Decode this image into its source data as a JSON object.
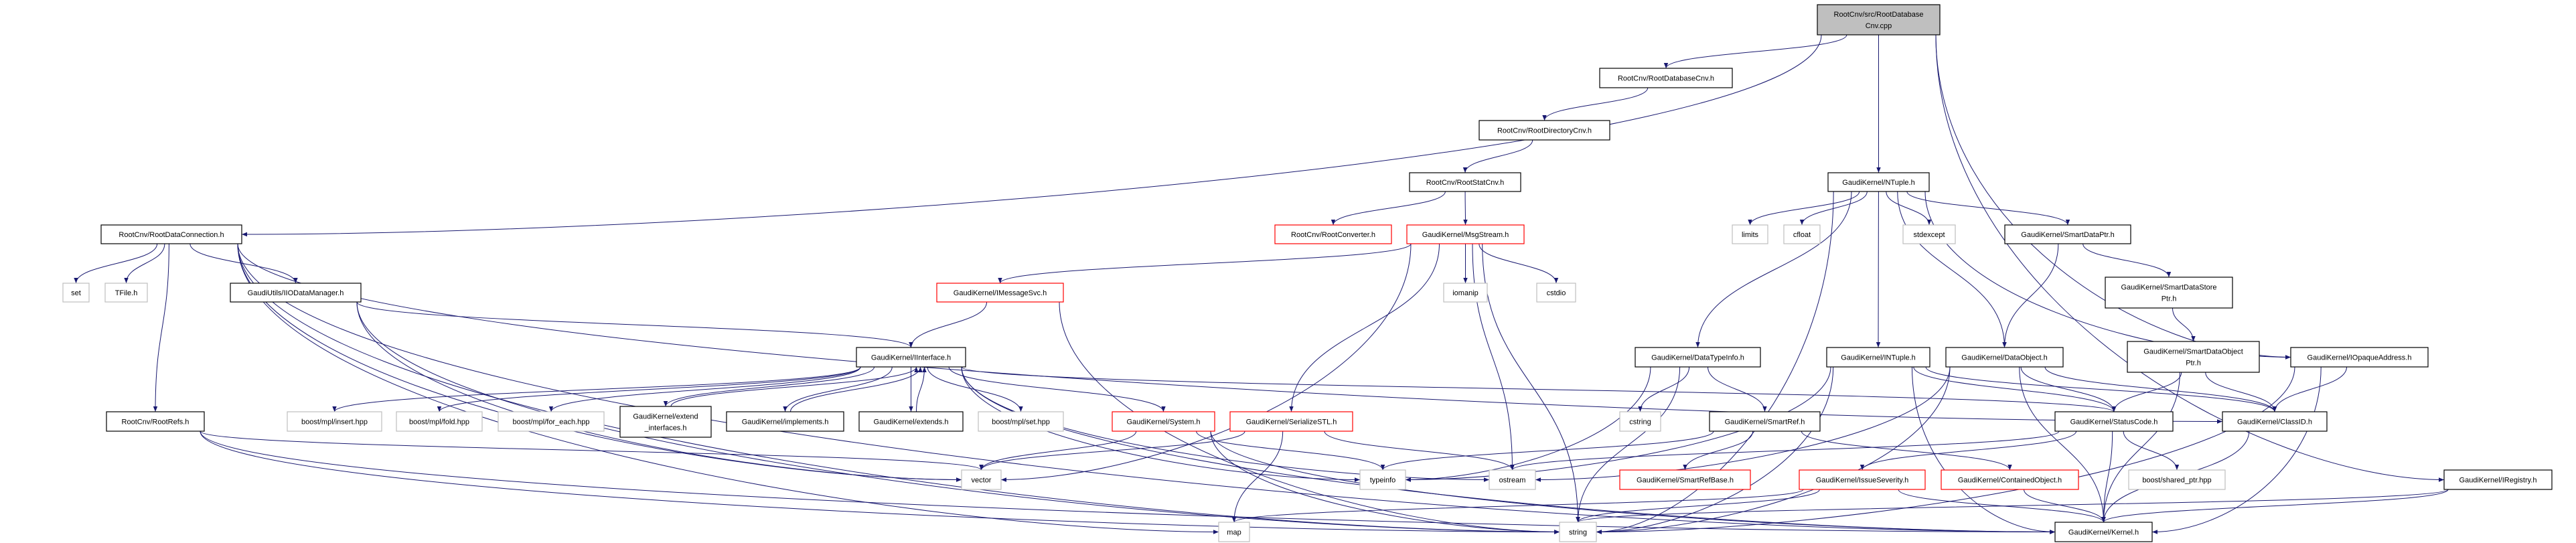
{
  "colors": {
    "edge": "#191970",
    "documented_border": "#000000",
    "truncated_border": "#ff0000",
    "external_border": "#bfbfbf",
    "root_fill": "#bfbfbf"
  },
  "nodes": [
    {
      "id": "root",
      "lines": [
        "RootCnv/src/RootDatabase",
        "Cnv.cpp"
      ],
      "style": "root"
    },
    {
      "id": "rdbcnv",
      "lines": [
        "RootCnv/RootDatabaseCnv.h"
      ],
      "style": "doc"
    },
    {
      "id": "rdircnv",
      "lines": [
        "RootCnv/RootDirectoryCnv.h"
      ],
      "style": "doc"
    },
    {
      "id": "rstatcnv",
      "lines": [
        "RootCnv/RootStatCnv.h"
      ],
      "style": "doc"
    },
    {
      "id": "rconv",
      "lines": [
        "RootCnv/RootConverter.h"
      ],
      "style": "red"
    },
    {
      "id": "msgstream",
      "lines": [
        "GaudiKernel/MsgStream.h"
      ],
      "style": "red"
    },
    {
      "id": "rdataconn",
      "lines": [
        "RootCnv/RootDataConnection.h"
      ],
      "style": "doc"
    },
    {
      "id": "set",
      "lines": [
        "set"
      ],
      "style": "ext"
    },
    {
      "id": "tfile",
      "lines": [
        "TFile.h"
      ],
      "style": "ext"
    },
    {
      "id": "iiodm",
      "lines": [
        "GaudiUtils/IIODataManager.h"
      ],
      "style": "doc"
    },
    {
      "id": "imsgsvc",
      "lines": [
        "GaudiKernel/IMessageSvc.h"
      ],
      "style": "red"
    },
    {
      "id": "iomanip",
      "lines": [
        "iomanip"
      ],
      "style": "ext"
    },
    {
      "id": "cstdio",
      "lines": [
        "cstdio"
      ],
      "style": "ext"
    },
    {
      "id": "iinterface",
      "lines": [
        "GaudiKernel/IInterface.h"
      ],
      "style": "doc"
    },
    {
      "id": "rootrefs",
      "lines": [
        "RootCnv/RootRefs.h"
      ],
      "style": "doc"
    },
    {
      "id": "minsert",
      "lines": [
        "boost/mpl/insert.hpp"
      ],
      "style": "ext"
    },
    {
      "id": "mfold",
      "lines": [
        "boost/mpl/fold.hpp"
      ],
      "style": "ext"
    },
    {
      "id": "mforeach",
      "lines": [
        "boost/mpl/for_each.hpp"
      ],
      "style": "ext"
    },
    {
      "id": "extif",
      "lines": [
        "GaudiKernel/extend",
        "_interfaces.h"
      ],
      "style": "doc"
    },
    {
      "id": "implements",
      "lines": [
        "GaudiKernel/implements.h"
      ],
      "style": "doc"
    },
    {
      "id": "extends",
      "lines": [
        "GaudiKernel/extends.h"
      ],
      "style": "doc"
    },
    {
      "id": "mset",
      "lines": [
        "boost/mpl/set.hpp"
      ],
      "style": "ext"
    },
    {
      "id": "system",
      "lines": [
        "GaudiKernel/System.h"
      ],
      "style": "red"
    },
    {
      "id": "serstl",
      "lines": [
        "GaudiKernel/SerializeSTL.h"
      ],
      "style": "red"
    },
    {
      "id": "vector",
      "lines": [
        "vector"
      ],
      "style": "ext"
    },
    {
      "id": "typeinfo",
      "lines": [
        "typeinfo"
      ],
      "style": "ext"
    },
    {
      "id": "ostream",
      "lines": [
        "ostream"
      ],
      "style": "ext"
    },
    {
      "id": "map",
      "lines": [
        "map"
      ],
      "style": "ext"
    },
    {
      "id": "string",
      "lines": [
        "string"
      ],
      "style": "ext"
    },
    {
      "id": "ntuple",
      "lines": [
        "GaudiKernel/NTuple.h"
      ],
      "style": "doc"
    },
    {
      "id": "limits",
      "lines": [
        "limits"
      ],
      "style": "ext"
    },
    {
      "id": "cfloat",
      "lines": [
        "cfloat"
      ],
      "style": "ext"
    },
    {
      "id": "stdexcept",
      "lines": [
        "stdexcept"
      ],
      "style": "ext"
    },
    {
      "id": "sdptr",
      "lines": [
        "GaudiKernel/SmartDataPtr.h"
      ],
      "style": "doc"
    },
    {
      "id": "sdsptr",
      "lines": [
        "GaudiKernel/SmartDataStore",
        "Ptr.h"
      ],
      "style": "doc"
    },
    {
      "id": "sdoptr",
      "lines": [
        "GaudiKernel/SmartDataObject",
        "Ptr.h"
      ],
      "style": "doc"
    },
    {
      "id": "dti",
      "lines": [
        "GaudiKernel/DataTypeInfo.h"
      ],
      "style": "doc"
    },
    {
      "id": "intuple",
      "lines": [
        "GaudiKernel/INTuple.h"
      ],
      "style": "doc"
    },
    {
      "id": "dataobj",
      "lines": [
        "GaudiKernel/DataObject.h"
      ],
      "style": "doc"
    },
    {
      "id": "iopaque",
      "lines": [
        "GaudiKernel/IOpaqueAddress.h"
      ],
      "style": "doc"
    },
    {
      "id": "cstring",
      "lines": [
        "cstring"
      ],
      "style": "ext"
    },
    {
      "id": "smartref",
      "lines": [
        "GaudiKernel/SmartRef.h"
      ],
      "style": "doc"
    },
    {
      "id": "statuscode",
      "lines": [
        "GaudiKernel/StatusCode.h"
      ],
      "style": "doc"
    },
    {
      "id": "classid",
      "lines": [
        "GaudiKernel/ClassID.h"
      ],
      "style": "doc"
    },
    {
      "id": "srbase",
      "lines": [
        "GaudiKernel/SmartRefBase.h"
      ],
      "style": "red"
    },
    {
      "id": "issev",
      "lines": [
        "GaudiKernel/IssueSeverity.h"
      ],
      "style": "red"
    },
    {
      "id": "contobj",
      "lines": [
        "GaudiKernel/ContainedObject.h"
      ],
      "style": "red"
    },
    {
      "id": "sharedptr",
      "lines": [
        "boost/shared_ptr.hpp"
      ],
      "style": "ext"
    },
    {
      "id": "iregistry",
      "lines": [
        "GaudiKernel/IRegistry.h"
      ],
      "style": "doc"
    },
    {
      "id": "kernel",
      "lines": [
        "GaudiKernel/Kernel.h"
      ],
      "style": "doc"
    }
  ],
  "edges": [
    [
      "root",
      "rdataconn"
    ],
    [
      "root",
      "rdbcnv"
    ],
    [
      "root",
      "ntuple"
    ],
    [
      "root",
      "iopaque"
    ],
    [
      "root",
      "iregistry"
    ],
    [
      "rdbcnv",
      "rdircnv"
    ],
    [
      "rdircnv",
      "rstatcnv"
    ],
    [
      "rstatcnv",
      "rconv"
    ],
    [
      "rstatcnv",
      "msgstream"
    ],
    [
      "rdataconn",
      "set"
    ],
    [
      "rdataconn",
      "tfile"
    ],
    [
      "rdataconn",
      "iiodm"
    ],
    [
      "rdataconn",
      "rootrefs"
    ],
    [
      "rdataconn",
      "vector"
    ],
    [
      "rdataconn",
      "map"
    ],
    [
      "rdataconn",
      "string"
    ],
    [
      "rdataconn",
      "classid"
    ],
    [
      "rdataconn",
      "kernel"
    ],
    [
      "iiodm",
      "iinterface"
    ],
    [
      "iiodm",
      "vector"
    ],
    [
      "iiodm",
      "string"
    ],
    [
      "rootrefs",
      "vector"
    ],
    [
      "rootrefs",
      "string"
    ],
    [
      "rootrefs",
      "kernel"
    ],
    [
      "msgstream",
      "imsgsvc"
    ],
    [
      "msgstream",
      "vector"
    ],
    [
      "msgstream",
      "serstl"
    ],
    [
      "msgstream",
      "iomanip"
    ],
    [
      "msgstream",
      "cstdio"
    ],
    [
      "msgstream",
      "string"
    ],
    [
      "msgstream",
      "ostream"
    ],
    [
      "imsgsvc",
      "iinterface"
    ],
    [
      "imsgsvc",
      "string"
    ],
    [
      "iinterface",
      "minsert"
    ],
    [
      "iinterface",
      "mfold"
    ],
    [
      "iinterface",
      "mforeach"
    ],
    [
      "iinterface",
      "extif"
    ],
    [
      "iinterface",
      "implements"
    ],
    [
      "iinterface",
      "extends"
    ],
    [
      "iinterface",
      "mset"
    ],
    [
      "iinterface",
      "system"
    ],
    [
      "iinterface",
      "typeinfo"
    ],
    [
      "iinterface",
      "ostream"
    ],
    [
      "iinterface",
      "statuscode"
    ],
    [
      "iinterface",
      "kernel"
    ],
    [
      "extif",
      "iinterface"
    ],
    [
      "implements",
      "iinterface"
    ],
    [
      "extends",
      "iinterface"
    ],
    [
      "system",
      "vector"
    ],
    [
      "system",
      "typeinfo"
    ],
    [
      "system",
      "string"
    ],
    [
      "system",
      "kernel"
    ],
    [
      "serstl",
      "vector"
    ],
    [
      "serstl",
      "map"
    ],
    [
      "serstl",
      "ostream"
    ],
    [
      "ntuple",
      "limits"
    ],
    [
      "ntuple",
      "cfloat"
    ],
    [
      "ntuple",
      "stdexcept"
    ],
    [
      "ntuple",
      "sdptr"
    ],
    [
      "ntuple",
      "iopaque"
    ],
    [
      "ntuple",
      "string"
    ],
    [
      "ntuple",
      "dti"
    ],
    [
      "ntuple",
      "intuple"
    ],
    [
      "ntuple",
      "dataobj"
    ],
    [
      "sdptr",
      "sdsptr"
    ],
    [
      "sdptr",
      "dataobj"
    ],
    [
      "sdsptr",
      "sdoptr"
    ],
    [
      "sdoptr",
      "statuscode"
    ],
    [
      "sdoptr",
      "classid"
    ],
    [
      "sdoptr",
      "kernel"
    ],
    [
      "dti",
      "string"
    ],
    [
      "dti",
      "cstring"
    ],
    [
      "dti",
      "smartref"
    ],
    [
      "dti",
      "typeinfo"
    ],
    [
      "smartref",
      "srbase"
    ],
    [
      "smartref",
      "contobj"
    ],
    [
      "smartref",
      "typeinfo"
    ],
    [
      "intuple",
      "statuscode"
    ],
    [
      "intuple",
      "kernel"
    ],
    [
      "intuple",
      "string"
    ],
    [
      "intuple",
      "typeinfo"
    ],
    [
      "intuple",
      "classid"
    ],
    [
      "dataobj",
      "statuscode"
    ],
    [
      "dataobj",
      "classid"
    ],
    [
      "dataobj",
      "kernel"
    ],
    [
      "dataobj",
      "ostream"
    ],
    [
      "dataobj",
      "string"
    ],
    [
      "iopaque",
      "classid"
    ],
    [
      "iopaque",
      "string"
    ],
    [
      "iopaque",
      "kernel"
    ],
    [
      "statuscode",
      "issev"
    ],
    [
      "statuscode",
      "sharedptr"
    ],
    [
      "statuscode",
      "kernel"
    ],
    [
      "statuscode",
      "ostream"
    ],
    [
      "classid",
      "kernel"
    ],
    [
      "issev",
      "map"
    ],
    [
      "issev",
      "string"
    ],
    [
      "issev",
      "kernel"
    ],
    [
      "contobj",
      "kernel"
    ],
    [
      "iregistry",
      "string"
    ],
    [
      "iregistry",
      "kernel"
    ]
  ]
}
